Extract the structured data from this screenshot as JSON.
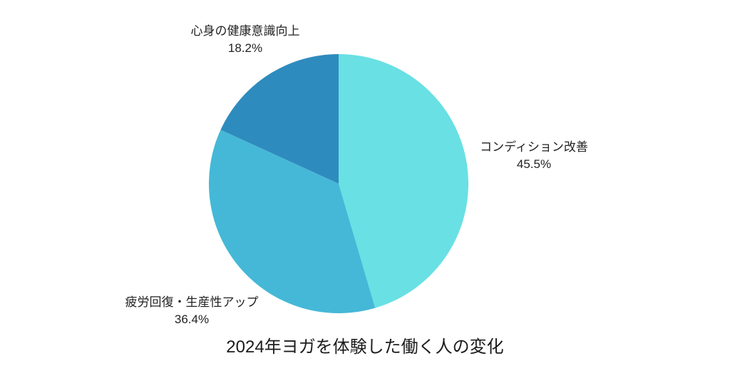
{
  "background_color": "#ffffff",
  "text_color": "#222222",
  "chart_data": {
    "type": "pie",
    "title": "2024年ヨガを体験した働く人の変化",
    "start_angle": "top",
    "direction": "clockwise",
    "legend_position": "none",
    "units": "%",
    "slices": [
      {
        "label": "コンディション改善",
        "value": 45.5,
        "pct_label": "45.5%",
        "color": "#69E0E4"
      },
      {
        "label": "疲労回復・生産性アップ",
        "value": 36.4,
        "pct_label": "36.4%",
        "color": "#45B8D7"
      },
      {
        "label": "心身の健康意識向上",
        "value": 18.2,
        "pct_label": "18.2%",
        "color": "#2E8BBE"
      }
    ]
  }
}
